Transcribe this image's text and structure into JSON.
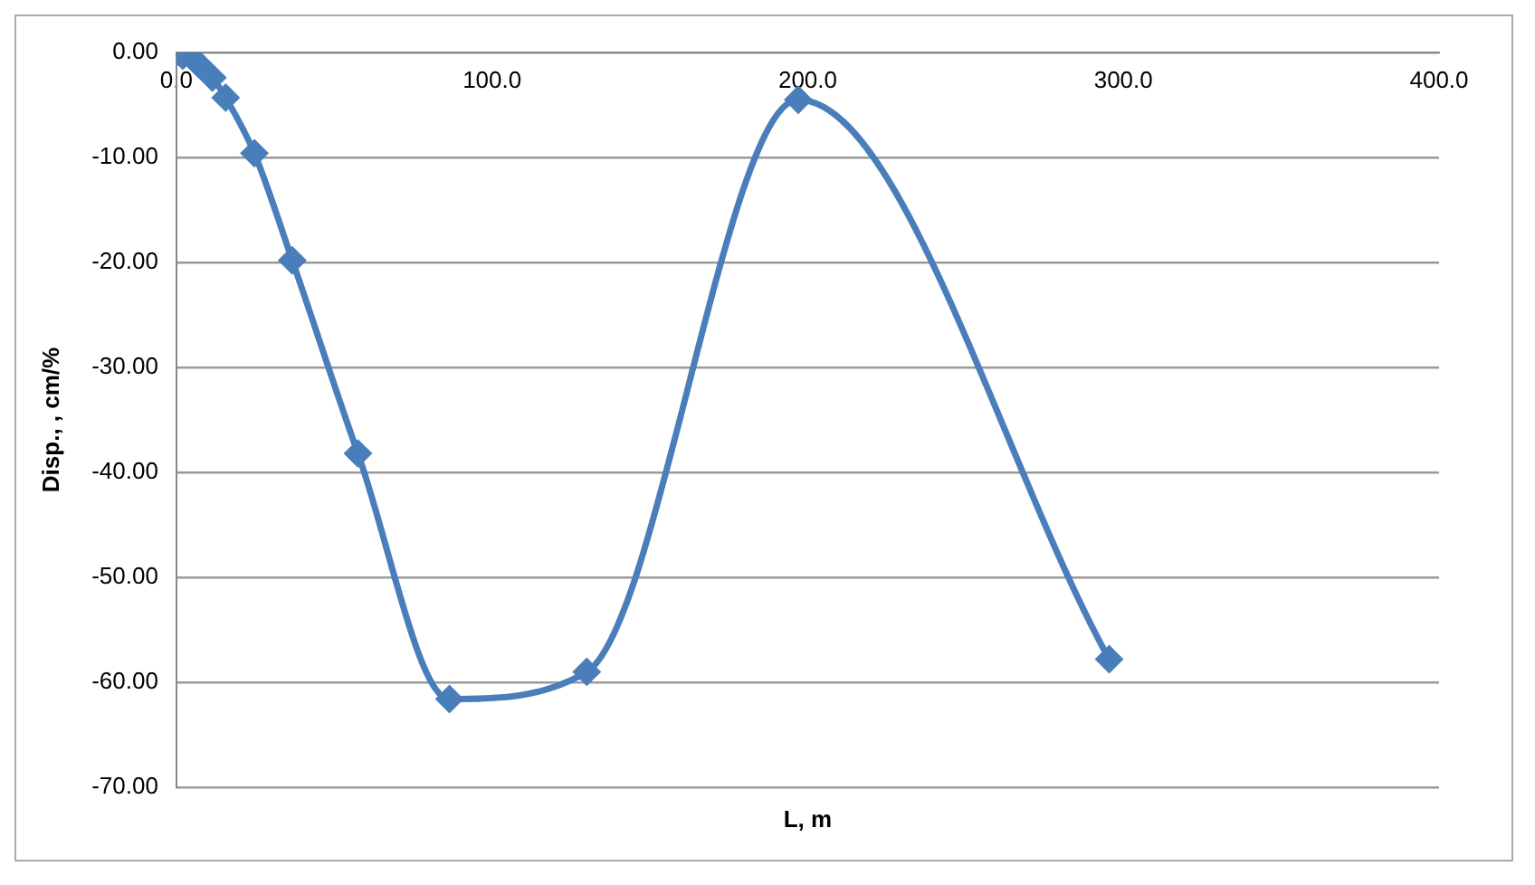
{
  "chart_data": {
    "type": "line",
    "xlabel": "L, m",
    "ylabel": "Disp., , cm/%",
    "x": [
      0,
      2,
      7,
      11.4,
      15.6,
      24.7,
      36.7,
      57.5,
      86.5,
      130,
      197,
      295.5
    ],
    "series": [
      {
        "color": "#4a7ebb",
        "values": [
          0,
          -0.3,
          -1.1,
          -2.4,
          -4.3,
          -9.6,
          -19.8,
          -38.2,
          -61.6,
          -59,
          -4.5,
          -57.8
        ]
      }
    ],
    "xlim": [
      0,
      400
    ],
    "xticks": [
      {
        "value": 0,
        "label": "0.0"
      },
      {
        "value": 100,
        "label": "100.0"
      },
      {
        "value": 200,
        "label": "200.0"
      },
      {
        "value": 300,
        "label": "300.0"
      },
      {
        "value": 400,
        "label": "400.0"
      }
    ],
    "ylim": [
      -70,
      0
    ],
    "yticks": [
      {
        "value": -70,
        "label": "-70.00"
      },
      {
        "value": -60,
        "label": "-60.00"
      },
      {
        "value": -50,
        "label": "-50.00"
      },
      {
        "value": -40,
        "label": "-40.00"
      },
      {
        "value": -30,
        "label": "-30.00"
      },
      {
        "value": -20,
        "label": "-20.00"
      },
      {
        "value": -10,
        "label": "-10.00"
      },
      {
        "value": 0,
        "label": "0.00"
      }
    ],
    "grid": "y",
    "legend": false,
    "marker": "diamond",
    "line_style": "solid"
  }
}
